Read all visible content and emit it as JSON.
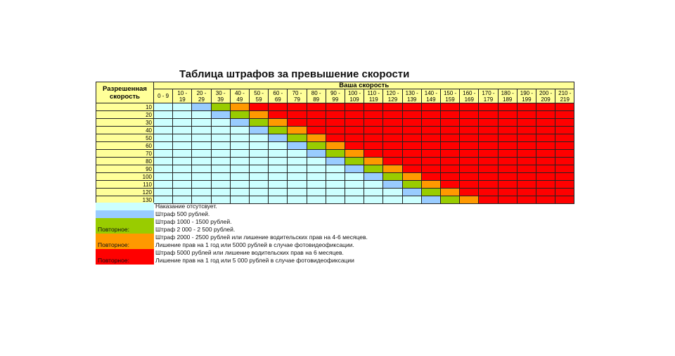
{
  "title": "Таблица штрафов за превышение скорости",
  "header": {
    "allowed_label": "Разрешенная\nскорость",
    "speed_label": "Ваша скорость"
  },
  "columns": [
    "0 - 9",
    "10 -\n19",
    "20 -\n29",
    "30 -\n39",
    "40 -\n49",
    "50 -\n59",
    "60 -\n69",
    "70 -\n79",
    "80 -\n89",
    "90 -\n99",
    "100 -\n109",
    "110 -\n119",
    "120 -\n129",
    "130 -\n139",
    "140 -\n149",
    "150 -\n159",
    "160 -\n169",
    "170 -\n179",
    "180 -\n189",
    "190 -\n199",
    "200 -\n209",
    "210 -\n219"
  ],
  "rows": [
    "10",
    "20",
    "30",
    "40",
    "50",
    "60",
    "70",
    "80",
    "90",
    "100",
    "110",
    "120",
    "130"
  ],
  "colors": {
    "none": "#ccffff",
    "fine500": "#99ccff",
    "fine1000": "#99cc00",
    "fine2000": "#ff9900",
    "fine5000": "#ff0000",
    "header": "#ffff99"
  },
  "legend": {
    "none_text": "Наказание отсутсвует.",
    "fine500_text": "Штраф 500 рублей.",
    "fine1000_text": "Штраф 1000 - 1500 рублей.",
    "fine1000_repeat_label": "Повторное:",
    "fine1000_repeat_text": "Штраф 2 000 - 2 500 рублей.",
    "fine2000_text": "Штраф 2000 - 2500 рублей или лишение водительских прав на 4-6 месяцев.",
    "fine2000_repeat_label": "Повторное:",
    "fine2000_repeat_text": "Лишение прав на 1 год или 5000 рублей в случае фотовидеофиксации.",
    "fine5000_text": "Штраф 5000 рублей или лишение водительских прав на 6 месяцев.",
    "fine5000_repeat_label": "Повторное:",
    "fine5000_repeat_text": "Лишение прав на 1 год или 5 000 рублей в случае фотовидеофиксации"
  }
}
